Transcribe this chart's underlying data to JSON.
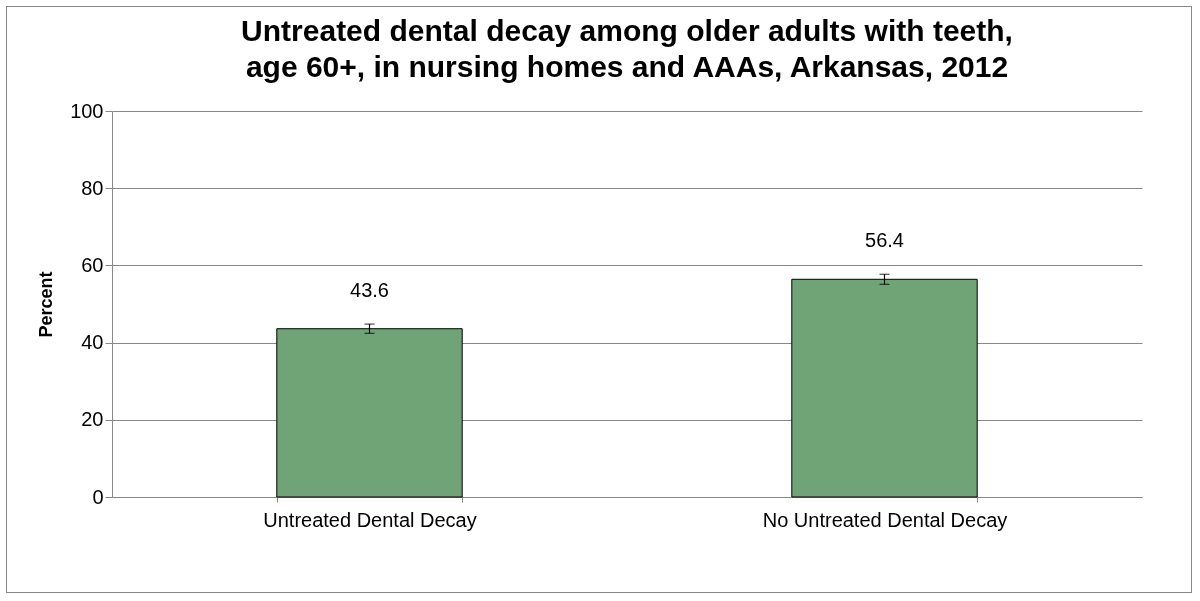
{
  "chart_data": {
    "type": "bar",
    "title": "Untreated dental decay among older adults with teeth, age 60+, in nursing homes and AAAs, Arkansas, 2012",
    "ylabel": "Percent",
    "categories": [
      "Untreated Dental Decay",
      "No Untreated Dental Decay"
    ],
    "values": [
      43.6,
      56.4
    ],
    "errors": [
      1.2,
      1.3
    ],
    "color": "#70a477",
    "ylim": [
      0,
      100
    ],
    "yticks": [
      0,
      20,
      40,
      60,
      80,
      100
    ],
    "grid": "y",
    "data_labels": true
  }
}
